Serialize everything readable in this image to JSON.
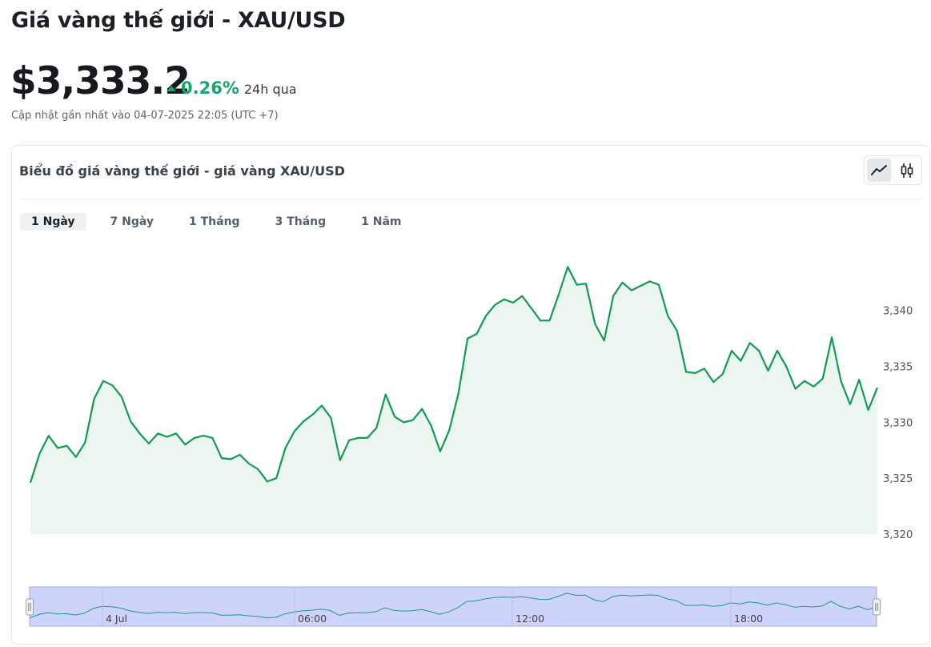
{
  "header": {
    "title": "Giá vàng thế giới - XAU/USD",
    "price": "$3,333.2",
    "change_value": "0.26%",
    "change_period": "24h qua",
    "updated": "Cập nhật gần nhất vào 04-07-2025 22:05 (UTC +7)"
  },
  "card": {
    "title": "Biểu đồ giá vàng thế giới - giá vàng XAU/USD",
    "chart_types": [
      {
        "label": "line-chart-icon",
        "active": true
      },
      {
        "label": "candlestick-icon",
        "active": false
      }
    ],
    "range_tabs": [
      {
        "label": "1 Ngày",
        "active": true
      },
      {
        "label": "7 Ngày",
        "active": false
      },
      {
        "label": "1 Tháng",
        "active": false
      },
      {
        "label": "3 Tháng",
        "active": false
      },
      {
        "label": "1 Năm",
        "active": false
      }
    ]
  },
  "colors": {
    "line": "#139a55",
    "area": "#eaf6ef",
    "up": "#16a56b",
    "navigator_fill": "#cdd3fb",
    "navigator_line": "#1a9a8a"
  },
  "chart_data": {
    "type": "area",
    "ylim": [
      3320,
      3347
    ],
    "y_ticks": [
      3340,
      3335,
      3330,
      3325,
      3320
    ],
    "y_tick_labels": [
      "3,340",
      "3,335",
      "3,330",
      "3,325",
      "3,320"
    ],
    "series": [
      {
        "values": [
          3324.6,
          3327.2,
          3328.8,
          3327.7,
          3327.9,
          3326.9,
          3328.2,
          3332.1,
          3333.7,
          3333.3,
          3332.3,
          3330.1,
          3329.0,
          3328.1,
          3329.0,
          3328.7,
          3329.0,
          3328.0,
          3328.6,
          3328.8,
          3328.6,
          3326.8,
          3326.7,
          3327.1,
          3326.3,
          3325.8,
          3324.7,
          3325.0,
          3327.7,
          3329.2,
          3330.1,
          3330.7,
          3331.5,
          3330.4,
          3326.6,
          3328.4,
          3328.6,
          3328.6,
          3329.5,
          3332.5,
          3330.5,
          3330.0,
          3330.2,
          3331.2,
          3329.7,
          3327.4,
          3329.3,
          3332.6,
          3337.5,
          3337.9,
          3339.5,
          3340.5,
          3341.0,
          3340.7,
          3341.3,
          3340.2,
          3339.1,
          3339.1,
          3341.4,
          3343.9,
          3342.3,
          3342.4,
          3338.8,
          3337.3,
          3341.3,
          3342.5,
          3341.8,
          3342.2,
          3342.6,
          3342.3,
          3339.5,
          3338.2,
          3334.5,
          3334.4,
          3334.8,
          3333.6,
          3334.3,
          3336.4,
          3335.5,
          3337.1,
          3336.4,
          3334.6,
          3336.4,
          3335.0,
          3333.0,
          3333.7,
          3333.2,
          3333.9,
          3337.6,
          3333.7,
          3331.6,
          3333.8,
          3331.1,
          3333.1
        ]
      }
    ],
    "navigator": {
      "x_labels": [
        "4 Jul",
        "06:00",
        "12:00",
        "18:00"
      ]
    }
  }
}
